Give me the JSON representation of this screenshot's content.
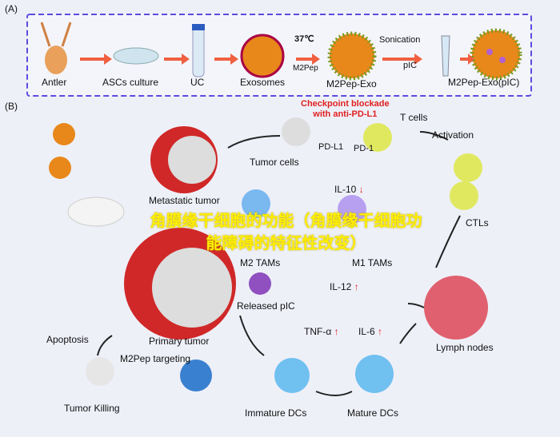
{
  "panel_a": {
    "label": "(A)",
    "steps": [
      "Antler",
      "ASCs culture",
      "UC",
      "Exosomes",
      "M2Pep-Exo",
      "M2Pep-Exo(pIC)"
    ],
    "temperature": "37℃",
    "reagent_m2pep": "M2Pep",
    "sonication": "Sonication",
    "reagent_pic": "pIC"
  },
  "panel_b": {
    "label": "(B)",
    "checkpoint": "Checkpoint blockade\nwith anti-PD-L1",
    "t_cells": "T cells",
    "pd_l1": "PD-L1",
    "pd_1": "PD-1",
    "tumor_cells": "Tumor cells",
    "activation": "Activation",
    "metastatic_tumor": "Metastatic tumor",
    "il10": "IL-10",
    "m2_tams": "M2 TAMs",
    "m1_tams": "M1 TAMs",
    "ctls": "CTLs",
    "il12": "IL-12",
    "released_pic": "Released pIC",
    "tnf": "TNF-α",
    "il6": "IL-6",
    "lymph_nodes": "Lymph nodes",
    "apoptosis": "Apoptosis",
    "primary_tumor": "Primary tumor",
    "m2pep_targeting": "M2Pep targeting",
    "tumor_killing": "Tumor Killing",
    "immature_dcs": "Immature DCs",
    "mature_dcs": "Mature DCs",
    "down_arrow": "↓",
    "up_arrow": "↑"
  },
  "overlay_text": "角膜缘干细胞的功能（角膜缘干细胞功能障碍的特征性改变）",
  "colors": {
    "frame": "#5b4be0",
    "arrow": "#f06040",
    "overlay": "#ffee00",
    "red_text": "#e02020"
  }
}
